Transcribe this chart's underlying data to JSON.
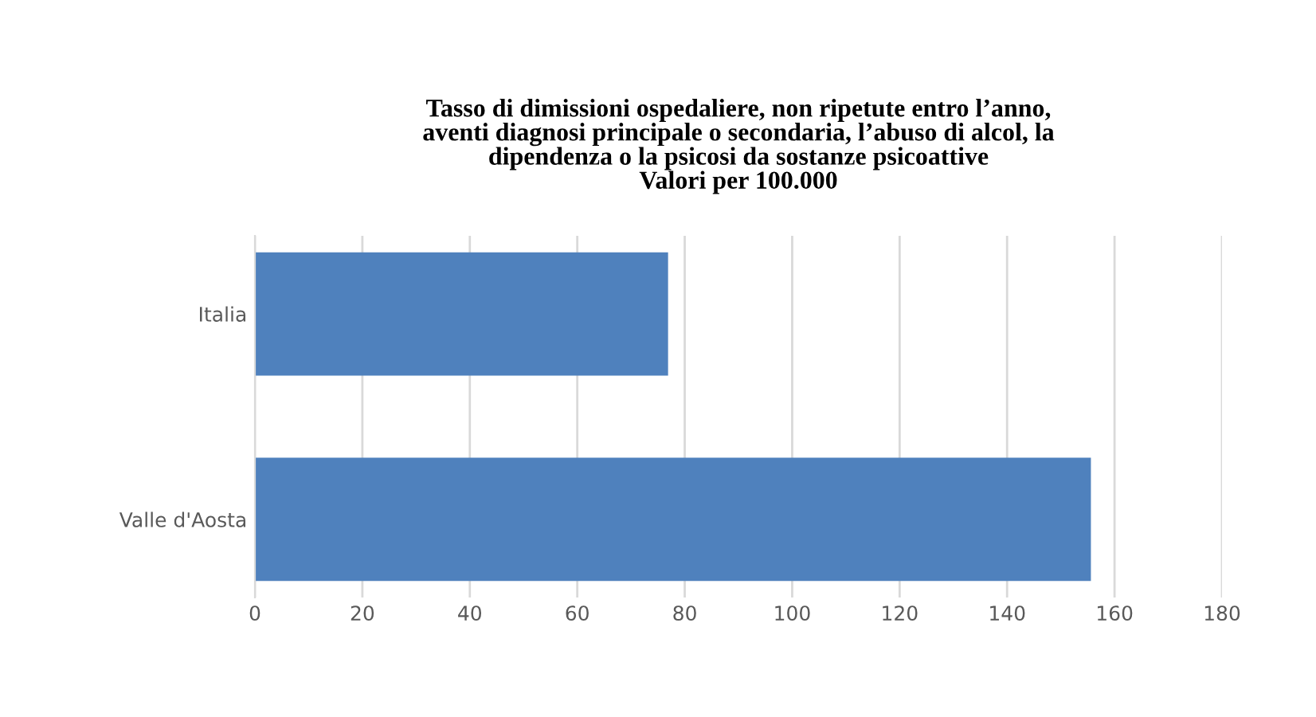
{
  "chart_data": {
    "type": "bar",
    "orientation": "horizontal",
    "title": "Tasso di dimissioni ospedaliere, non ripetute entro l’anno,\naventi diagnosi principale o secondaria, l’abuso di alcol, la\ndipendenza o la psicosi da sostanze psicoattive\nValori per 100.000",
    "categories": [
      "Italia",
      "Valle d'Aosta"
    ],
    "values": [
      76.9,
      155.6
    ],
    "color": "#4f81bd",
    "xlim": [
      0,
      180
    ],
    "xticks": [
      0,
      20,
      40,
      60,
      80,
      100,
      120,
      140,
      160,
      180
    ],
    "grid": "x",
    "legend": false
  }
}
